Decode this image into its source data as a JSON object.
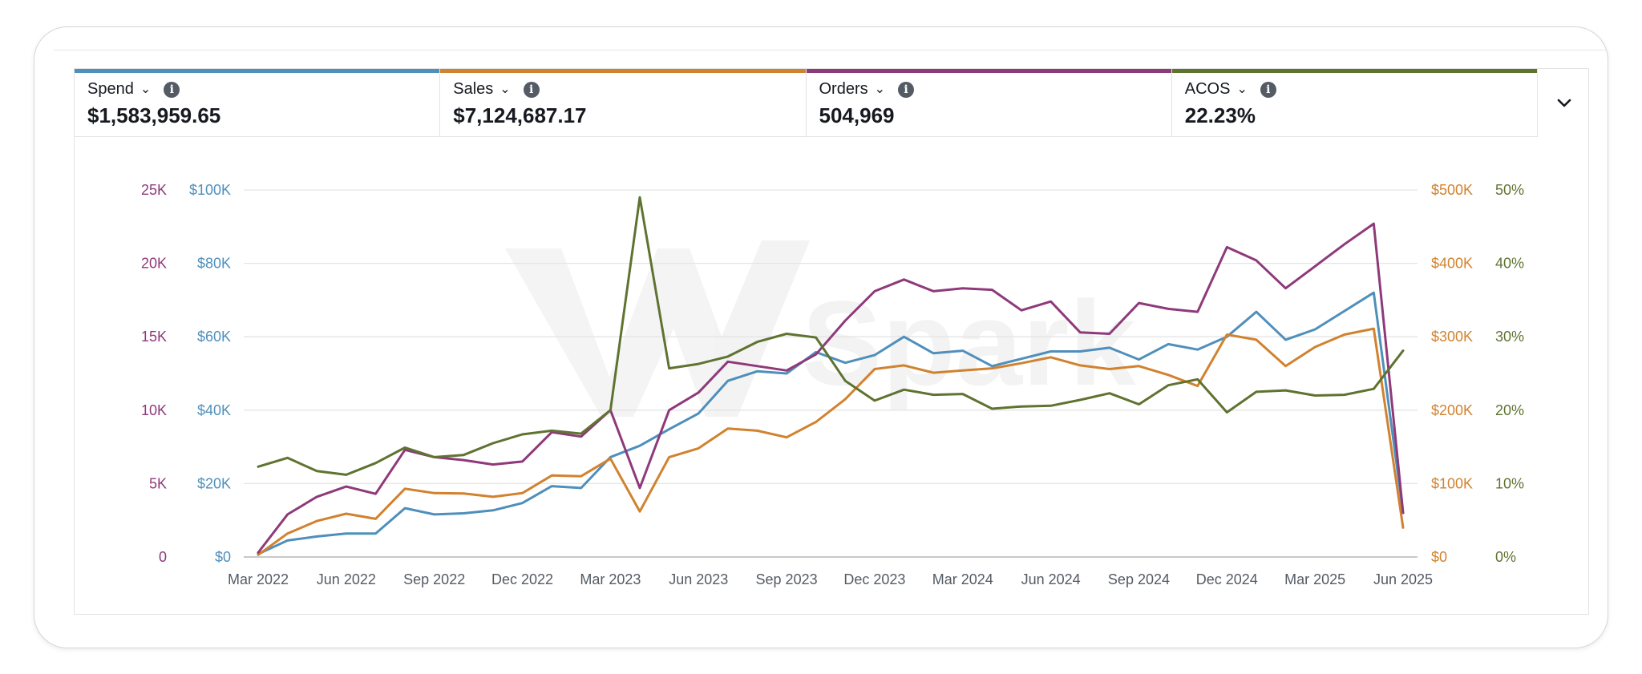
{
  "metrics": [
    {
      "label": "Spend",
      "value": "$1,583,959.65",
      "color": "#4f8fbb",
      "icon": "info-icon"
    },
    {
      "label": "Sales",
      "value": "$7,124,687.17",
      "color": "#d1822f",
      "icon": "info-icon"
    },
    {
      "label": "Orders",
      "value": "504,969",
      "color": "#8e3a7a",
      "icon": "info-icon"
    },
    {
      "label": "ACOS",
      "value": "22.23%",
      "color": "#5f7331",
      "icon": "info-icon"
    }
  ],
  "expand_icon": "chevron-down-icon",
  "watermark_icon": "logo-watermark",
  "chart_data": {
    "type": "line",
    "x": [
      "2022-03",
      "2022-04",
      "2022-05",
      "2022-06",
      "2022-07",
      "2022-08",
      "2022-09",
      "2022-10",
      "2022-11",
      "2022-12",
      "2023-01",
      "2023-02",
      "2023-03",
      "2023-04",
      "2023-05",
      "2023-06",
      "2023-07",
      "2023-08",
      "2023-09",
      "2023-10",
      "2023-11",
      "2023-12",
      "2024-01",
      "2024-02",
      "2024-03",
      "2024-04",
      "2024-05",
      "2024-06",
      "2024-07",
      "2024-08",
      "2024-09",
      "2024-10",
      "2024-11",
      "2024-12",
      "2025-01",
      "2025-02",
      "2025-03",
      "2025-04",
      "2025-05",
      "2025-06"
    ],
    "x_tick_labels": [
      "Mar 2022",
      "Jun 2022",
      "Sep 2022",
      "Dec 2022",
      "Mar 2023",
      "Jun 2023",
      "Sep 2023",
      "Dec 2023",
      "Mar 2024",
      "Jun 2024",
      "Sep 2024",
      "Dec 2024",
      "Mar 2025",
      "Jun 2025"
    ],
    "axes": {
      "orders": {
        "side": "left",
        "ticks": [
          "0",
          "5K",
          "10K",
          "15K",
          "20K",
          "25K"
        ],
        "range": [
          0,
          25000
        ],
        "color": "#8e3a7a"
      },
      "spend": {
        "side": "left",
        "ticks": [
          "$0",
          "$20K",
          "$40K",
          "$60K",
          "$80K",
          "$100K"
        ],
        "range": [
          0,
          100000
        ],
        "color": "#4f8fbb"
      },
      "sales": {
        "side": "right",
        "ticks": [
          "$0",
          "$100K",
          "$200K",
          "$300K",
          "$400K",
          "$500K"
        ],
        "range": [
          0,
          500000
        ],
        "color": "#d1822f"
      },
      "acos": {
        "side": "right",
        "ticks": [
          "0%",
          "10%",
          "20%",
          "30%",
          "40%",
          "50%"
        ],
        "range": [
          0,
          50
        ],
        "color": "#5f7331"
      }
    },
    "grid": true,
    "series": [
      {
        "name": "Spend",
        "axis": "spend",
        "color": "#4f8fbb",
        "values": [
          800,
          4500,
          5600,
          6400,
          6400,
          13300,
          11600,
          11900,
          12700,
          14700,
          19300,
          18800,
          27200,
          30300,
          34800,
          39100,
          48000,
          50600,
          50000,
          55800,
          52900,
          55000,
          60000,
          55500,
          56200,
          52000,
          54000,
          56000,
          56000,
          57000,
          53800,
          58000,
          56500,
          60000,
          66800,
          59200,
          62000,
          67000,
          72000,
          12000
        ]
      },
      {
        "name": "Sales",
        "axis": "sales",
        "color": "#d1822f",
        "values": [
          3000,
          32000,
          49000,
          59000,
          52000,
          93000,
          87000,
          86500,
          82000,
          87000,
          111000,
          110000,
          134000,
          62000,
          136000,
          148000,
          175000,
          172000,
          163000,
          184000,
          215000,
          256000,
          261000,
          251000,
          254000,
          257000,
          264000,
          272000,
          261000,
          256000,
          260000,
          248000,
          233000,
          303000,
          296000,
          260000,
          286000,
          303000,
          311000,
          40000
        ]
      },
      {
        "name": "Orders",
        "axis": "orders",
        "color": "#8e3a7a",
        "values": [
          300,
          2900,
          4100,
          4800,
          4300,
          7300,
          6800,
          6600,
          6300,
          6500,
          8500,
          8200,
          10000,
          4700,
          10000,
          11200,
          13300,
          13000,
          12700,
          13800,
          16100,
          18100,
          18900,
          18100,
          18300,
          18200,
          16800,
          17400,
          15300,
          15200,
          17300,
          16900,
          16700,
          21100,
          20200,
          18300,
          19800,
          21300,
          22700,
          3000
        ]
      },
      {
        "name": "ACOS",
        "axis": "acos",
        "color": "#5f7331",
        "values": [
          12.3,
          13.5,
          11.7,
          11.2,
          12.8,
          14.9,
          13.6,
          13.9,
          15.5,
          16.7,
          17.2,
          16.8,
          20.0,
          49.0,
          25.7,
          26.3,
          27.3,
          29.3,
          30.4,
          29.9,
          24.0,
          21.3,
          22.8,
          22.1,
          22.2,
          20.2,
          20.5,
          20.6,
          21.4,
          22.3,
          20.8,
          23.4,
          24.2,
          19.7,
          22.5,
          22.7,
          22.0,
          22.1,
          22.9,
          28.1
        ]
      }
    ]
  }
}
